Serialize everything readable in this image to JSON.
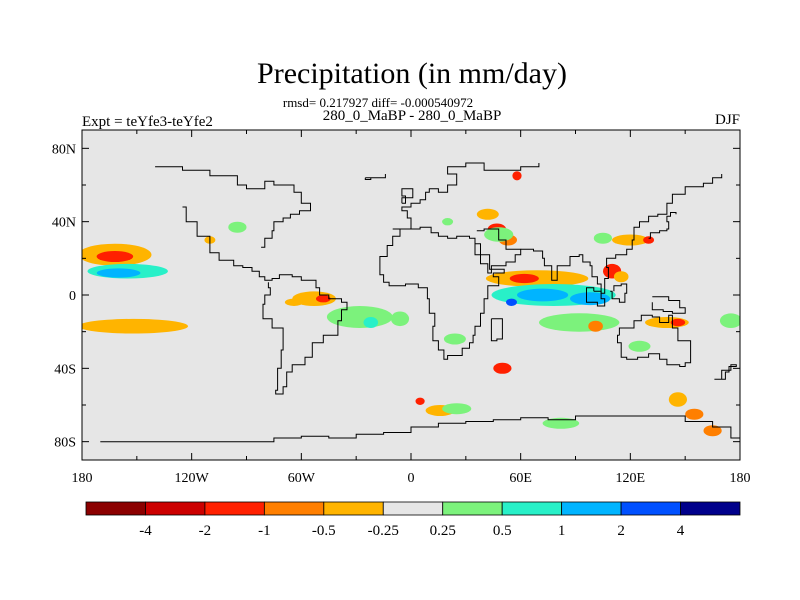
{
  "chart_data": {
    "type": "heatmap",
    "title": "Precipitation (in mm/day)",
    "stats_line": "rmsd= 0.217927 diff= -0.000540972",
    "subtitle": "280_0_MaBP - 280_0_MaBP",
    "left_label": "Expt = teYfe3-teYfe2",
    "right_label": "DJF",
    "x_ticks": [
      "180",
      "120W",
      "60W",
      "0",
      "60E",
      "120E",
      "180"
    ],
    "x_tick_values": [
      -180,
      -120,
      -60,
      0,
      60,
      120,
      180
    ],
    "y_ticks": [
      "80N",
      "40N",
      "0",
      "40S",
      "80S"
    ],
    "y_tick_values": [
      80,
      40,
      0,
      -40,
      -80
    ],
    "xlim": [
      -180,
      180
    ],
    "ylim": [
      -90,
      90
    ],
    "colorbar": {
      "labels": [
        "-4",
        "-2",
        "-1",
        "-0.5",
        "-0.25",
        "0.25",
        "0.5",
        "1",
        "2",
        "4"
      ],
      "colors": [
        "#8b0000",
        "#cc0000",
        "#ff2000",
        "#ff7f00",
        "#ffb400",
        "#e6e6e6",
        "#7cf27c",
        "#28f0c8",
        "#00b4ff",
        "#0050ff",
        "#00008b"
      ]
    },
    "background_color": "#e6e6e6",
    "features": [
      {
        "lon": -162,
        "lat": 22,
        "rx": 20,
        "ry": 6,
        "level": "-0.25"
      },
      {
        "lon": -162,
        "lat": 21,
        "rx": 10,
        "ry": 3,
        "level": "-1"
      },
      {
        "lon": -155,
        "lat": 13,
        "rx": 22,
        "ry": 4,
        "level": "0.5"
      },
      {
        "lon": -160,
        "lat": 12,
        "rx": 12,
        "ry": 2.5,
        "level": "1"
      },
      {
        "lon": -152,
        "lat": -17,
        "rx": 30,
        "ry": 4,
        "level": "-0.25"
      },
      {
        "lon": -95,
        "lat": 37,
        "rx": 5,
        "ry": 3,
        "level": "0.25"
      },
      {
        "lon": -110,
        "lat": 30,
        "rx": 3,
        "ry": 2,
        "level": "-0.25"
      },
      {
        "lon": -53,
        "lat": -2,
        "rx": 12,
        "ry": 4,
        "level": "-0.25"
      },
      {
        "lon": -48,
        "lat": -2,
        "rx": 4,
        "ry": 2,
        "level": "-1"
      },
      {
        "lon": -28,
        "lat": -12,
        "rx": 18,
        "ry": 6,
        "level": "0.25"
      },
      {
        "lon": -22,
        "lat": -15,
        "rx": 4,
        "ry": 3,
        "level": "0.5"
      },
      {
        "lon": -6,
        "lat": -13,
        "rx": 5,
        "ry": 4,
        "level": "0.25"
      },
      {
        "lon": 24,
        "lat": -24,
        "rx": 6,
        "ry": 3,
        "level": "0.25"
      },
      {
        "lon": 16,
        "lat": -63,
        "rx": 8,
        "ry": 3,
        "level": "-0.25"
      },
      {
        "lon": 25,
        "lat": -62,
        "rx": 8,
        "ry": 3,
        "level": "0.25"
      },
      {
        "lon": 5,
        "lat": -58,
        "rx": 2.5,
        "ry": 2,
        "level": "-1"
      },
      {
        "lon": 58,
        "lat": 65,
        "rx": 2.5,
        "ry": 2.5,
        "level": "-1"
      },
      {
        "lon": 42,
        "lat": 44,
        "rx": 6,
        "ry": 3,
        "level": "-0.25"
      },
      {
        "lon": 47,
        "lat": 36,
        "rx": 5,
        "ry": 3,
        "level": "-1"
      },
      {
        "lon": 53,
        "lat": 30,
        "rx": 5,
        "ry": 3,
        "level": "-0.5"
      },
      {
        "lon": 48,
        "lat": 33,
        "rx": 8,
        "ry": 4,
        "level": "0.25"
      },
      {
        "lon": 69,
        "lat": 9,
        "rx": 28,
        "ry": 4.5,
        "level": "-0.25"
      },
      {
        "lon": 62,
        "lat": 9,
        "rx": 8,
        "ry": 2.5,
        "level": "-1"
      },
      {
        "lon": 78,
        "lat": 0,
        "rx": 34,
        "ry": 6,
        "level": "0.5"
      },
      {
        "lon": 72,
        "lat": 0,
        "rx": 14,
        "ry": 3.5,
        "level": "1"
      },
      {
        "lon": 98,
        "lat": -2,
        "rx": 11,
        "ry": 3.5,
        "level": "1"
      },
      {
        "lon": 55,
        "lat": -4,
        "rx": 3,
        "ry": 2,
        "level": "2"
      },
      {
        "lon": 92,
        "lat": -15,
        "rx": 22,
        "ry": 5,
        "level": "0.25"
      },
      {
        "lon": 110,
        "lat": 13,
        "rx": 5,
        "ry": 4,
        "level": "-1"
      },
      {
        "lon": 115,
        "lat": 10,
        "rx": 4,
        "ry": 3,
        "level": "-0.25"
      },
      {
        "lon": 101,
        "lat": -17,
        "rx": 4,
        "ry": 3,
        "level": "-0.5"
      },
      {
        "lon": 120,
        "lat": 30,
        "rx": 10,
        "ry": 3,
        "level": "-0.25"
      },
      {
        "lon": 130,
        "lat": 30,
        "rx": 3,
        "ry": 2,
        "level": "-1"
      },
      {
        "lon": 105,
        "lat": 31,
        "rx": 5,
        "ry": 3,
        "level": "0.25"
      },
      {
        "lon": 140,
        "lat": -15,
        "rx": 12,
        "ry": 3,
        "level": "-0.25"
      },
      {
        "lon": 146,
        "lat": -15,
        "rx": 4,
        "ry": 2,
        "level": "-1"
      },
      {
        "lon": 175,
        "lat": -14,
        "rx": 6,
        "ry": 4,
        "level": "0.25"
      },
      {
        "lon": 125,
        "lat": -28,
        "rx": 6,
        "ry": 3,
        "level": "0.25"
      },
      {
        "lon": 146,
        "lat": -57,
        "rx": 5,
        "ry": 4,
        "level": "-0.25"
      },
      {
        "lon": 155,
        "lat": -65,
        "rx": 5,
        "ry": 3,
        "level": "-0.5"
      },
      {
        "lon": 165,
        "lat": -74,
        "rx": 5,
        "ry": 3,
        "level": "-0.5"
      },
      {
        "lon": 50,
        "lat": -40,
        "rx": 5,
        "ry": 3,
        "level": "-1"
      },
      {
        "lon": 20,
        "lat": 40,
        "rx": 3,
        "ry": 2,
        "level": "0.25"
      },
      {
        "lon": -64,
        "lat": -4,
        "rx": 5,
        "ry": 2,
        "level": "-0.25"
      },
      {
        "lon": 82,
        "lat": -70,
        "rx": 10,
        "ry": 3,
        "level": "0.25"
      }
    ],
    "coastline": [
      [
        [
          -170,
          -80
        ],
        [
          -80,
          -80
        ],
        [
          -75,
          -78
        ],
        [
          -60,
          -77
        ],
        [
          -45,
          -78
        ],
        [
          -30,
          -76
        ],
        [
          -15,
          -75
        ],
        [
          0,
          -72
        ],
        [
          15,
          -70
        ],
        [
          30,
          -69
        ],
        [
          45,
          -68
        ],
        [
          60,
          -67
        ],
        [
          75,
          -68
        ],
        [
          90,
          -66
        ],
        [
          105,
          -66
        ],
        [
          120,
          -66
        ],
        [
          135,
          -66
        ],
        [
          150,
          -69
        ],
        [
          165,
          -72
        ],
        [
          175,
          -78
        ],
        [
          180,
          -80
        ]
      ],
      [
        [
          -125,
          48
        ],
        [
          -123,
          40
        ],
        [
          -117,
          32
        ],
        [
          -110,
          23
        ],
        [
          -105,
          19
        ],
        [
          -97,
          16
        ],
        [
          -92,
          15
        ],
        [
          -87,
          13
        ],
        [
          -83,
          10
        ],
        [
          -80,
          8
        ],
        [
          -78,
          8
        ],
        [
          -76,
          9
        ],
        [
          -72,
          11
        ],
        [
          -65,
          10
        ],
        [
          -60,
          8
        ],
        [
          -52,
          4
        ],
        [
          -50,
          0
        ],
        [
          -45,
          -2
        ],
        [
          -38,
          -4
        ],
        [
          -35,
          -8
        ],
        [
          -38,
          -14
        ],
        [
          -40,
          -22
        ],
        [
          -48,
          -26
        ],
        [
          -54,
          -34
        ],
        [
          -58,
          -38
        ],
        [
          -65,
          -42
        ],
        [
          -68,
          -50
        ],
        [
          -70,
          -54
        ],
        [
          -74,
          -52
        ],
        [
          -73,
          -40
        ],
        [
          -71,
          -30
        ],
        [
          -70,
          -18
        ],
        [
          -76,
          -13
        ],
        [
          -81,
          -5
        ],
        [
          -80,
          0
        ],
        [
          -77,
          4
        ],
        [
          -78,
          7
        ]
      ],
      [
        [
          -82,
          26
        ],
        [
          -80,
          31
        ],
        [
          -76,
          35
        ],
        [
          -75,
          40
        ],
        [
          -70,
          42
        ],
        [
          -66,
          44
        ],
        [
          -61,
          46
        ],
        [
          -55,
          50
        ],
        [
          -60,
          56
        ],
        [
          -64,
          60
        ],
        [
          -75,
          62
        ],
        [
          -80,
          58
        ],
        [
          -90,
          60
        ],
        [
          -95,
          65
        ],
        [
          -110,
          68
        ],
        [
          -125,
          70
        ],
        [
          -140,
          70
        ]
      ],
      [
        [
          -10,
          36
        ],
        [
          -5,
          36
        ],
        [
          0,
          42
        ],
        [
          -2,
          46
        ],
        [
          -5,
          48
        ],
        [
          0,
          50
        ],
        [
          5,
          52
        ],
        [
          8,
          56
        ],
        [
          10,
          58
        ],
        [
          15,
          56
        ],
        [
          20,
          60
        ],
        [
          25,
          66
        ],
        [
          20,
          70
        ],
        [
          30,
          72
        ],
        [
          40,
          68
        ],
        [
          50,
          68
        ],
        [
          60,
          70
        ],
        [
          70,
          72
        ]
      ],
      [
        [
          -17,
          15
        ],
        [
          -17,
          21
        ],
        [
          -13,
          27
        ],
        [
          -10,
          32
        ],
        [
          -6,
          36
        ],
        [
          5,
          37
        ],
        [
          10,
          37
        ],
        [
          11,
          34
        ],
        [
          15,
          32
        ],
        [
          20,
          31
        ],
        [
          25,
          32
        ],
        [
          32,
          31
        ],
        [
          35,
          28
        ],
        [
          38,
          22
        ],
        [
          43,
          14
        ],
        [
          51,
          12
        ],
        [
          45,
          10
        ],
        [
          48,
          5
        ],
        [
          42,
          -2
        ],
        [
          40,
          -10
        ],
        [
          38,
          -17
        ],
        [
          35,
          -22
        ],
        [
          34,
          -26
        ],
        [
          32,
          -29
        ],
        [
          28,
          -33
        ],
        [
          20,
          -35
        ],
        [
          18,
          -30
        ],
        [
          15,
          -25
        ],
        [
          12,
          -17
        ],
        [
          13,
          -10
        ],
        [
          10,
          -2
        ],
        [
          9,
          4
        ],
        [
          4,
          6
        ],
        [
          -3,
          5
        ],
        [
          -8,
          5
        ],
        [
          -12,
          7
        ],
        [
          -15,
          11
        ],
        [
          -17,
          15
        ]
      ],
      [
        [
          36,
          35
        ],
        [
          40,
          36
        ],
        [
          48,
          30
        ],
        [
          52,
          25
        ],
        [
          56,
          25
        ],
        [
          60,
          22
        ],
        [
          57,
          18
        ],
        [
          52,
          16
        ],
        [
          44,
          12
        ],
        [
          42,
          17
        ],
        [
          38,
          22
        ],
        [
          35,
          28
        ]
      ],
      [
        [
          60,
          25
        ],
        [
          67,
          24
        ],
        [
          72,
          20
        ],
        [
          73,
          16
        ],
        [
          77,
          8
        ],
        [
          80,
          12
        ],
        [
          80,
          16
        ],
        [
          87,
          21
        ],
        [
          92,
          22
        ],
        [
          94,
          18
        ],
        [
          98,
          16
        ],
        [
          99,
          10
        ],
        [
          102,
          6
        ],
        [
          104,
          1
        ],
        [
          106,
          9
        ],
        [
          108,
          15
        ],
        [
          107,
          20
        ],
        [
          112,
          22
        ],
        [
          118,
          25
        ],
        [
          121,
          30
        ],
        [
          122,
          37
        ],
        [
          125,
          40
        ],
        [
          130,
          43
        ],
        [
          135,
          44
        ],
        [
          140,
          50
        ],
        [
          143,
          55
        ],
        [
          150,
          59
        ],
        [
          160,
          61
        ],
        [
          165,
          64
        ],
        [
          170,
          66
        ]
      ],
      [
        [
          44,
          -13
        ],
        [
          50,
          -15
        ],
        [
          50,
          -24
        ],
        [
          47,
          -25
        ],
        [
          44,
          -22
        ],
        [
          44,
          -13
        ]
      ],
      [
        [
          114,
          -22
        ],
        [
          113,
          -26
        ],
        [
          115,
          -34
        ],
        [
          118,
          -35
        ],
        [
          124,
          -34
        ],
        [
          130,
          -32
        ],
        [
          136,
          -35
        ],
        [
          140,
          -38
        ],
        [
          147,
          -39
        ],
        [
          150,
          -37
        ],
        [
          153,
          -30
        ],
        [
          153,
          -25
        ],
        [
          146,
          -18
        ],
        [
          143,
          -11
        ],
        [
          141,
          -15
        ],
        [
          136,
          -12
        ],
        [
          132,
          -11
        ],
        [
          126,
          -14
        ],
        [
          122,
          -18
        ],
        [
          114,
          -22
        ]
      ],
      [
        [
          130,
          31
        ],
        [
          131,
          34
        ],
        [
          136,
          35
        ],
        [
          140,
          36
        ],
        [
          141,
          40
        ],
        [
          140,
          43
        ],
        [
          142,
          45
        ],
        [
          145,
          44
        ]
      ],
      [
        [
          166,
          -46
        ],
        [
          172,
          -42
        ],
        [
          174,
          -39
        ],
        [
          178,
          -38
        ],
        [
          175,
          -41
        ],
        [
          170,
          -46
        ],
        [
          166,
          -46
        ]
      ],
      [
        [
          100,
          2
        ],
        [
          104,
          -2
        ],
        [
          106,
          -6
        ],
        [
          102,
          -4
        ],
        [
          96,
          4
        ],
        [
          100,
          2
        ]
      ],
      [
        [
          109,
          2
        ],
        [
          110,
          -2
        ],
        [
          114,
          -4
        ],
        [
          117,
          1
        ],
        [
          118,
          6
        ],
        [
          115,
          5
        ],
        [
          111,
          2
        ]
      ],
      [
        [
          132,
          -1
        ],
        [
          141,
          -3
        ],
        [
          147,
          -7
        ],
        [
          150,
          -10
        ],
        [
          143,
          -9
        ],
        [
          138,
          -8
        ],
        [
          132,
          -4
        ]
      ],
      [
        [
          -5,
          50
        ],
        [
          -3,
          54
        ],
        [
          -5,
          58
        ],
        [
          -2,
          58
        ],
        [
          1,
          53
        ],
        [
          -5,
          50
        ]
      ],
      [
        [
          -25,
          64
        ],
        [
          -14,
          66
        ],
        [
          -14,
          64
        ],
        [
          -22,
          63
        ],
        [
          -25,
          64
        ]
      ]
    ]
  }
}
